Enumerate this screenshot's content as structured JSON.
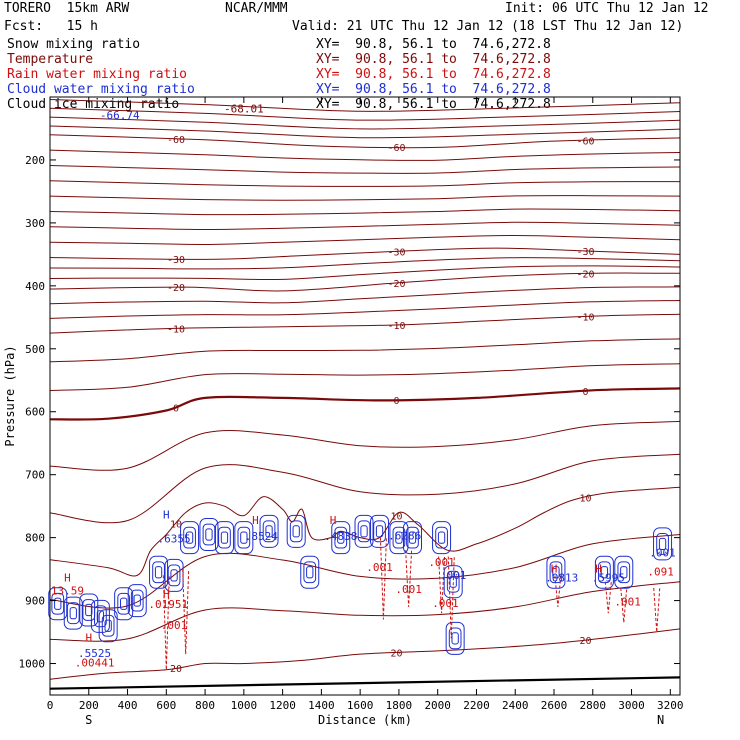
{
  "header": {
    "model": "TORERO  15km ARW",
    "center": "NCAR/MMM",
    "init": "Init: 06 UTC Thu 12 Jan 12",
    "fcst": "Fcst:   15 h",
    "valid": "Valid: 21 UTC Thu 12 Jan 12 (18 LST Thu 12 Jan 12)"
  },
  "colors": {
    "snow": "#000000",
    "temperature": "#7a0a0a",
    "rain": "#d01010",
    "cloud_water": "#1e2fd0",
    "cloud_ice": "#000000",
    "ground": "#000000",
    "axes": "#000000"
  },
  "fields": [
    {
      "label": "Snow mixing ratio",
      "xy": "XY=  90.8, 56.1 to  74.6,272.8",
      "color_key": "snow"
    },
    {
      "label": "Temperature",
      "xy": "XY=  90.8, 56.1 to  74.6,272.8",
      "color_key": "temperature"
    },
    {
      "label": "Rain water mixing ratio",
      "xy": "XY=  90.8, 56.1 to  74.6,272.8",
      "color_key": "rain"
    },
    {
      "label": "Cloud water mixing ratio",
      "xy": "XY=  90.8, 56.1 to  74.6,272.8",
      "color_key": "cloud_water"
    },
    {
      "label": "Cloud ice mixing ratio",
      "xy": "XY=  90.8, 56.1 to  74.6,272.8",
      "color_key": "cloud_ice"
    }
  ],
  "chart_data": {
    "type": "cross-section contour",
    "xlabel": "Distance (km)",
    "ylabel": "Pressure (hPa)",
    "xlim": [
      0,
      3250
    ],
    "ylim": [
      1050,
      100
    ],
    "x_ticks": [
      0,
      200,
      400,
      600,
      800,
      1000,
      1200,
      1400,
      1600,
      1800,
      2000,
      2200,
      2400,
      2600,
      2800,
      3000,
      3200
    ],
    "y_ticks": [
      200,
      300,
      400,
      500,
      600,
      700,
      800,
      900,
      1000
    ],
    "endpoint_labels": {
      "left": "S",
      "right": "N"
    },
    "grid": false,
    "temperature_isotherms": [
      {
        "label": "-60",
        "points": [
          [
            0,
            160
          ],
          [
            800,
            168
          ],
          [
            1400,
            178
          ],
          [
            2000,
            180
          ],
          [
            2600,
            170
          ],
          [
            3250,
            165
          ]
        ]
      },
      {
        "label": "-30",
        "points": [
          [
            0,
            355
          ],
          [
            800,
            358
          ],
          [
            1300,
            352
          ],
          [
            1800,
            345
          ],
          [
            2300,
            340
          ],
          [
            2800,
            345
          ],
          [
            3250,
            350
          ]
        ]
      },
      {
        "label": "-20",
        "points": [
          [
            0,
            405
          ],
          [
            700,
            402
          ],
          [
            1200,
            408
          ],
          [
            1800,
            395
          ],
          [
            2300,
            385
          ],
          [
            2800,
            380
          ],
          [
            3250,
            380
          ]
        ]
      },
      {
        "label": "-10",
        "points": [
          [
            0,
            475
          ],
          [
            600,
            468
          ],
          [
            1200,
            465
          ],
          [
            1800,
            462
          ],
          [
            2300,
            455
          ],
          [
            2800,
            448
          ],
          [
            3250,
            445
          ]
        ]
      },
      {
        "label": "0",
        "points": [
          [
            0,
            612
          ],
          [
            300,
            611
          ],
          [
            600,
            598
          ],
          [
            800,
            578
          ],
          [
            1200,
            578
          ],
          [
            1700,
            582
          ],
          [
            2200,
            578
          ],
          [
            2800,
            566
          ],
          [
            3250,
            563
          ]
        ]
      },
      {
        "label": "10",
        "points": [
          [
            0,
            835
          ],
          [
            300,
            848
          ],
          [
            450,
            860
          ],
          [
            520,
            820
          ],
          [
            600,
            795
          ],
          [
            700,
            760
          ],
          [
            800,
            745
          ],
          [
            900,
            750
          ],
          [
            1000,
            765
          ],
          [
            1100,
            735
          ],
          [
            1200,
            755
          ],
          [
            1250,
            775
          ],
          [
            1300,
            755
          ],
          [
            1350,
            800
          ],
          [
            1450,
            800
          ],
          [
            1500,
            790
          ],
          [
            1600,
            800
          ],
          [
            1700,
            800
          ],
          [
            1800,
            760
          ],
          [
            1900,
            780
          ],
          [
            2050,
            820
          ],
          [
            2200,
            810
          ],
          [
            2400,
            785
          ],
          [
            2550,
            760
          ],
          [
            2700,
            740
          ],
          [
            2900,
            728
          ],
          [
            3250,
            720
          ]
        ]
      },
      {
        "label": "20",
        "points": [
          [
            0,
            1025
          ],
          [
            300,
            1015
          ],
          [
            600,
            1010
          ],
          [
            800,
            1000
          ],
          [
            1000,
            1000
          ],
          [
            1300,
            995
          ],
          [
            1600,
            985
          ],
          [
            2000,
            980
          ],
          [
            2300,
            975
          ],
          [
            2600,
            968
          ],
          [
            2900,
            958
          ],
          [
            3250,
            945
          ]
        ]
      }
    ],
    "annotations": [
      {
        "text": "-68.01",
        "field": "temperature",
        "x": 1000,
        "p": 125
      },
      {
        "text": "-66.74",
        "field": "cloud_water",
        "x": 360,
        "p": 135
      },
      {
        "text": "H",
        "field": "rain",
        "x": 90,
        "p": 870
      },
      {
        "text": "13.59",
        "field": "rain",
        "x": 90,
        "p": 890
      },
      {
        "text": "H",
        "field": "rain",
        "x": 200,
        "p": 965
      },
      {
        "text": ".5525",
        "field": "cloud_water",
        "x": 230,
        "p": 990
      },
      {
        "text": ".00441",
        "field": "rain",
        "x": 230,
        "p": 1005
      },
      {
        "text": "H",
        "field": "cloud_water",
        "x": 600,
        "p": 770
      },
      {
        "text": ".6355",
        "field": "cloud_water",
        "x": 640,
        "p": 808
      },
      {
        "text": "H",
        "field": "rain",
        "x": 600,
        "p": 895
      },
      {
        "text": ".01951",
        "field": "rain",
        "x": 610,
        "p": 912
      },
      {
        "text": ".001",
        "field": "rain",
        "x": 640,
        "p": 945
      },
      {
        "text": "H",
        "field": "rain",
        "x": 1060,
        "p": 778
      },
      {
        "text": ".8524",
        "field": "cloud_water",
        "x": 1090,
        "p": 804
      },
      {
        "text": "H",
        "field": "rain",
        "x": 1460,
        "p": 778
      },
      {
        "text": ".4838",
        "field": "cloud_water",
        "x": 1500,
        "p": 804
      },
      {
        "text": ".6286",
        "field": "cloud_water",
        "x": 1830,
        "p": 803
      },
      {
        "text": ".001",
        "field": "rain",
        "x": 1700,
        "p": 853
      },
      {
        "text": ".001",
        "field": "rain",
        "x": 1850,
        "p": 888
      },
      {
        "text": ".001",
        "field": "rain",
        "x": 2020,
        "p": 845
      },
      {
        "text": ".001",
        "field": "rain",
        "x": 2040,
        "p": 910
      },
      {
        "text": ".001",
        "field": "cloud_water",
        "x": 2080,
        "p": 866
      },
      {
        "text": "H",
        "field": "rain",
        "x": 2600,
        "p": 855
      },
      {
        "text": ".0813",
        "field": "cloud_water",
        "x": 2640,
        "p": 870
      },
      {
        "text": "H",
        "field": "rain",
        "x": 2830,
        "p": 855
      },
      {
        "text": ".5995",
        "field": "cloud_water",
        "x": 2880,
        "p": 870
      },
      {
        "text": ".001",
        "field": "rain",
        "x": 2980,
        "p": 908
      },
      {
        "text": ".001",
        "field": "cloud_water",
        "x": 3160,
        "p": 830
      },
      {
        "text": ".091",
        "field": "rain",
        "x": 3150,
        "p": 860
      }
    ],
    "cloud_water_cells": [
      [
        40,
        905
      ],
      [
        120,
        920
      ],
      [
        200,
        915
      ],
      [
        260,
        925
      ],
      [
        300,
        940
      ],
      [
        380,
        905
      ],
      [
        450,
        900
      ],
      [
        560,
        855
      ],
      [
        640,
        860
      ],
      [
        720,
        800
      ],
      [
        820,
        795
      ],
      [
        900,
        800
      ],
      [
        1000,
        800
      ],
      [
        1130,
        790
      ],
      [
        1270,
        790
      ],
      [
        1340,
        855
      ],
      [
        1500,
        800
      ],
      [
        1620,
        790
      ],
      [
        1700,
        790
      ],
      [
        1800,
        800
      ],
      [
        1870,
        800
      ],
      [
        2020,
        800
      ],
      [
        2080,
        870
      ],
      [
        2090,
        960
      ],
      [
        2610,
        855
      ],
      [
        2860,
        855
      ],
      [
        2960,
        855
      ],
      [
        3160,
        810
      ]
    ],
    "rain_shafts": [
      [
        600,
        860,
        1010
      ],
      [
        700,
        850,
        985
      ],
      [
        1720,
        800,
        930
      ],
      [
        1850,
        820,
        910
      ],
      [
        2020,
        830,
        920
      ],
      [
        2070,
        830,
        960
      ],
      [
        2620,
        860,
        910
      ],
      [
        2880,
        870,
        920
      ],
      [
        2960,
        880,
        935
      ],
      [
        3130,
        880,
        950
      ]
    ]
  }
}
